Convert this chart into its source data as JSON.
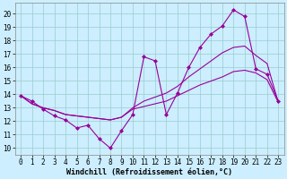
{
  "background_color": "#cceeff",
  "grid_color": "#99cccc",
  "line_color": "#990099",
  "marker": "D",
  "marker_size": 2,
  "x_ticks": [
    0,
    1,
    2,
    3,
    4,
    5,
    6,
    7,
    8,
    9,
    10,
    11,
    12,
    13,
    14,
    15,
    16,
    17,
    18,
    19,
    20,
    21,
    22,
    23
  ],
  "y_ticks": [
    10,
    11,
    12,
    13,
    14,
    15,
    16,
    17,
    18,
    19,
    20
  ],
  "xlabel": "Windchill (Refroidissement éolien,°C)",
  "xlabel_fontsize": 6,
  "tick_fontsize": 5.5,
  "xlim": [
    -0.5,
    23.5
  ],
  "ylim": [
    9.5,
    20.8
  ],
  "lw": 0.8,
  "series1_x": [
    0,
    1,
    2,
    3,
    4,
    5,
    6,
    7,
    8,
    9,
    10,
    11,
    12,
    13,
    14,
    15,
    16,
    17,
    18,
    19,
    20,
    21,
    22,
    23
  ],
  "series1_y": [
    13.9,
    13.5,
    12.9,
    12.4,
    12.1,
    11.5,
    11.7,
    10.7,
    10.0,
    11.3,
    12.5,
    16.8,
    16.5,
    12.5,
    14.1,
    16.0,
    17.5,
    18.5,
    19.1,
    20.3,
    19.8,
    15.9,
    15.5,
    13.5
  ],
  "series2_x": [
    0,
    1,
    2,
    3,
    4,
    5,
    6,
    7,
    8,
    9,
    10,
    11,
    12,
    13,
    14,
    15,
    16,
    17,
    18,
    19,
    20,
    21,
    22,
    23
  ],
  "series2_y": [
    13.9,
    13.3,
    13.0,
    12.8,
    12.5,
    12.4,
    12.3,
    12.2,
    12.1,
    12.3,
    13.0,
    13.5,
    13.8,
    14.1,
    14.6,
    15.3,
    15.9,
    16.5,
    17.1,
    17.5,
    17.6,
    16.9,
    16.3,
    13.4
  ],
  "series3_x": [
    0,
    1,
    2,
    3,
    4,
    5,
    6,
    7,
    8,
    9,
    10,
    11,
    12,
    13,
    14,
    15,
    16,
    17,
    18,
    19,
    20,
    21,
    22,
    23
  ],
  "series3_y": [
    13.9,
    13.3,
    13.0,
    12.8,
    12.5,
    12.4,
    12.3,
    12.2,
    12.1,
    12.3,
    12.9,
    13.1,
    13.3,
    13.5,
    13.9,
    14.3,
    14.7,
    15.0,
    15.3,
    15.7,
    15.8,
    15.6,
    15.1,
    13.4
  ]
}
